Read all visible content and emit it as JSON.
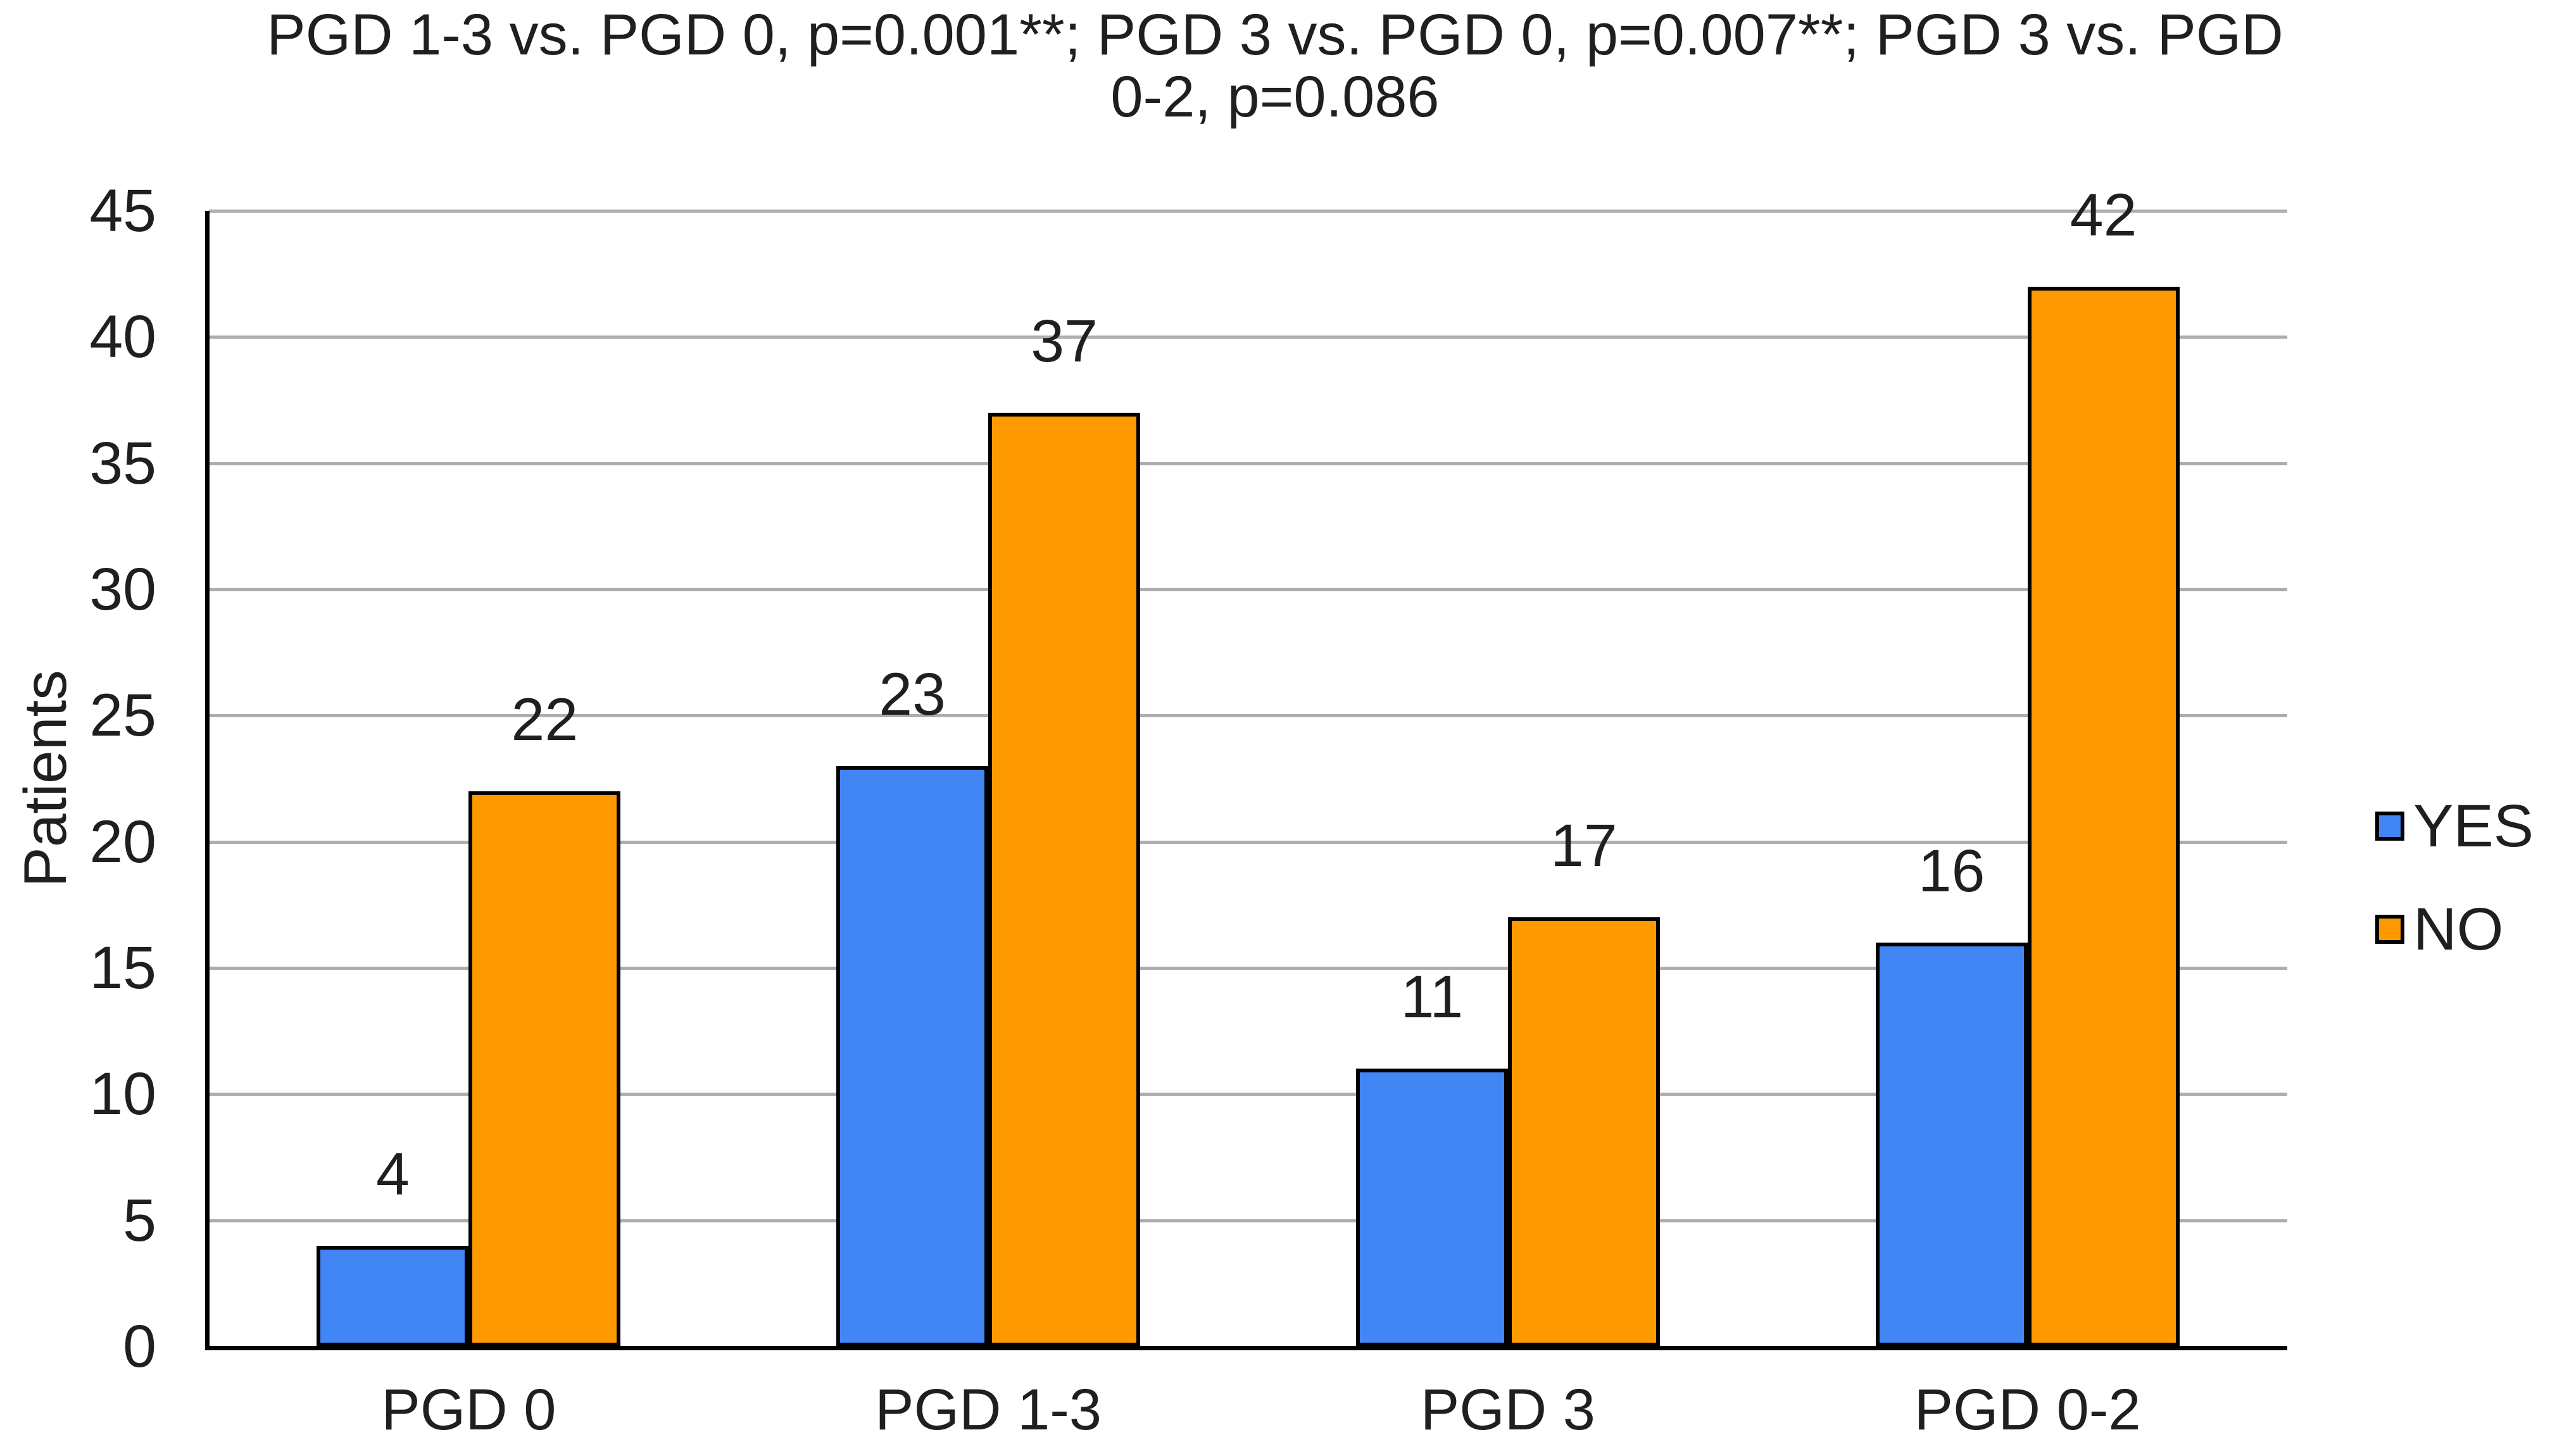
{
  "chart_data": {
    "type": "bar",
    "title": "PGD 1-3 vs. PGD 0, p=0.001**; PGD 3 vs. PGD 0, p=0.007**; PGD 3 vs. PGD 0-2, p=0.086",
    "title_lines": [
      "PGD 1-3 vs. PGD 0, p=0.001**; PGD 3 vs. PGD 0, p=0.007**; PGD 3 vs. PGD",
      "0-2, p=0.086"
    ],
    "categories": [
      "PGD 0",
      "PGD 1-3",
      "PGD 3",
      "PGD 0-2"
    ],
    "series": [
      {
        "name": "YES",
        "color": "#4285F4",
        "values": [
          4,
          23,
          11,
          16
        ]
      },
      {
        "name": "NO",
        "color": "#FF9900",
        "values": [
          22,
          37,
          17,
          42
        ]
      }
    ],
    "xlabel": "",
    "ylabel": "Patients",
    "ylim": [
      0,
      45
    ],
    "ytick_step": 5,
    "yticks": [
      0,
      5,
      10,
      15,
      20,
      25,
      30,
      35,
      40,
      45
    ],
    "grid": true,
    "legend_position": "right",
    "data_labels": true,
    "colors": {
      "bar_outline": "#000000",
      "gridline": "#adadad",
      "axis": "#000000",
      "text": "#1f1f1f",
      "background": "#ffffff"
    }
  }
}
